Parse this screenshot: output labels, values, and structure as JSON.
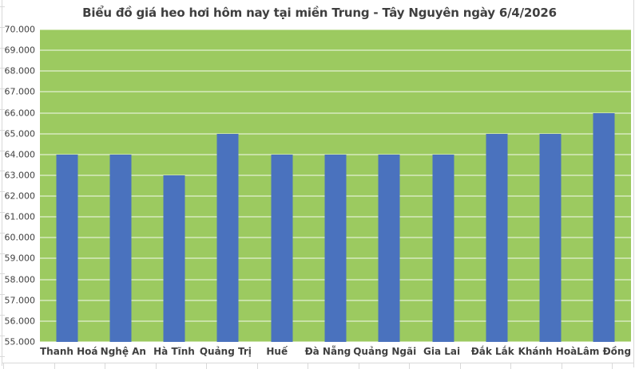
{
  "chart_data": {
    "type": "bar",
    "title": "Biểu đồ giá heo hơi hôm nay tại miền Trung - Tây Nguyên ngày 6/4/2026",
    "categories": [
      "Thanh Hoá",
      "Nghệ An",
      "Hà Tĩnh",
      "Quảng Trị",
      "Huế",
      "Đà Nẵng",
      "Quảng Ngãi",
      "Gia Lai",
      "Đắk Lắk",
      "Khánh Hoà",
      "Lâm Đồng"
    ],
    "values": [
      64000,
      64000,
      63000,
      65000,
      64000,
      64000,
      64000,
      64000,
      65000,
      65000,
      66000
    ],
    "xlabel": "",
    "ylabel": "",
    "ylim": [
      55000,
      70000
    ],
    "ytick_step": 1000,
    "ytick_labels": [
      "70.000",
      "69.000",
      "68.000",
      "67.000",
      "66.000",
      "65.000",
      "64.000",
      "63.000",
      "62.000",
      "61.000",
      "60.000",
      "59.000",
      "58.000",
      "57.000",
      "56.000",
      "55.000"
    ],
    "grid": true,
    "legend": "none",
    "colors": {
      "bar": "#4A72BE",
      "plot_background": "#9CCA60",
      "gridline": "rgba(255,255,255,0.45)",
      "title_text": "#3F3F3F",
      "axis_text": "#404040",
      "page_edge": "#D9D9D9"
    }
  }
}
